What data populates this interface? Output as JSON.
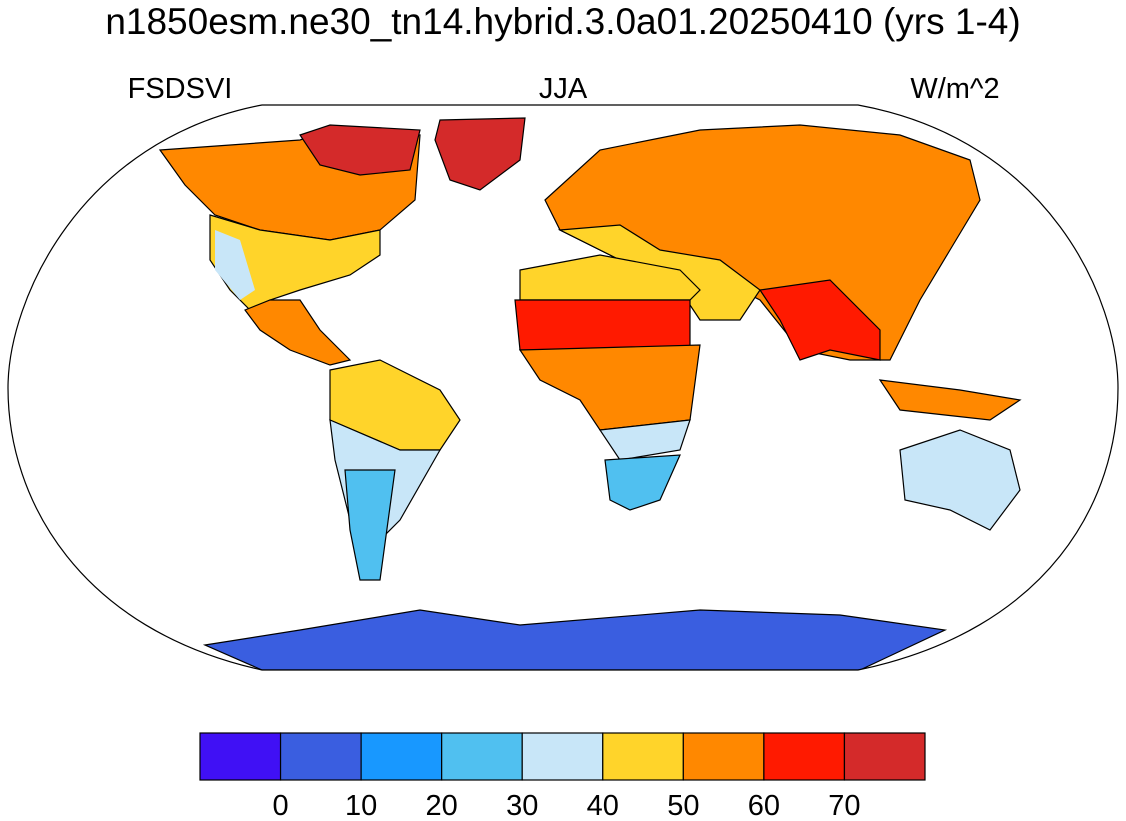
{
  "title": "n1850esm.ne30_tn14.hybrid.3.0a01.20250410 (yrs 1-4)",
  "left_label": "FSDSVI",
  "center_label": "JJA",
  "right_label": "W/m^2",
  "colorbar": {
    "colors": [
      "#4010f5",
      "#3a5ee0",
      "#1898ff",
      "#50c0f0",
      "#c8e6f8",
      "#ffd42a",
      "#ff8800",
      "#ff1a00",
      "#d42a2a"
    ],
    "levels": [
      0,
      10,
      20,
      30,
      40,
      50,
      60,
      70
    ]
  }
}
